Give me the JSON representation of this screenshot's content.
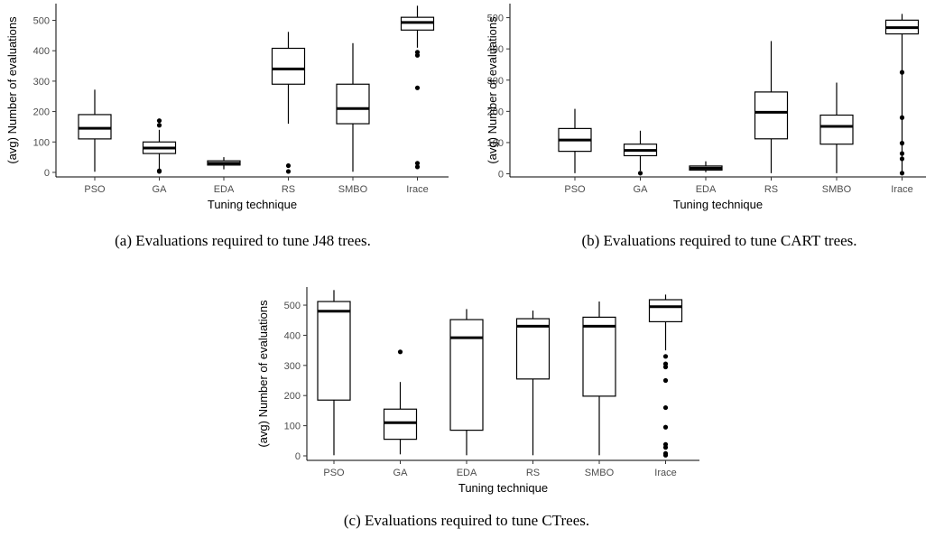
{
  "chart_data": [
    {
      "type": "boxplot",
      "caption": "(a) Evaluations required to tune J48 trees.",
      "xlabel": "Tuning technique",
      "ylabel": "(avg) Number of evaluations",
      "ylim": [
        -15,
        555
      ],
      "yticks": [
        0,
        100,
        200,
        300,
        400,
        500
      ],
      "categories": [
        "PSO",
        "GA",
        "EDA",
        "RS",
        "SMBO",
        "Irace"
      ],
      "boxes": [
        {
          "min": 2,
          "q1": 110,
          "median": 145,
          "q3": 190,
          "max": 272,
          "outliers": []
        },
        {
          "min": 10,
          "q1": 62,
          "median": 80,
          "q3": 100,
          "max": 140,
          "outliers": [
            3,
            5,
            155,
            170
          ]
        },
        {
          "min": 10,
          "q1": 24,
          "median": 30,
          "q3": 38,
          "max": 50,
          "outliers": []
        },
        {
          "min": 160,
          "q1": 290,
          "median": 340,
          "q3": 408,
          "max": 462,
          "outliers": [
            3,
            22
          ]
        },
        {
          "min": 2,
          "q1": 160,
          "median": 210,
          "q3": 290,
          "max": 425,
          "outliers": []
        },
        {
          "min": 410,
          "q1": 468,
          "median": 493,
          "q3": 510,
          "max": 548,
          "outliers": [
            18,
            30,
            278,
            385,
            395
          ]
        }
      ]
    },
    {
      "type": "boxplot",
      "caption": "(b) Evaluations required to tune CART trees.",
      "xlabel": "Tuning technique",
      "ylabel": "(avg) Number of evaluations",
      "ylim": [
        -10,
        545
      ],
      "yticks": [
        0,
        100,
        200,
        300,
        400,
        500
      ],
      "categories": [
        "PSO",
        "GA",
        "EDA",
        "RS",
        "SMBO",
        "Irace"
      ],
      "boxes": [
        {
          "min": 2,
          "q1": 72,
          "median": 108,
          "q3": 145,
          "max": 208,
          "outliers": []
        },
        {
          "min": 10,
          "q1": 58,
          "median": 75,
          "q3": 95,
          "max": 138,
          "outliers": [
            2
          ]
        },
        {
          "min": 5,
          "q1": 12,
          "median": 18,
          "q3": 25,
          "max": 40,
          "outliers": []
        },
        {
          "min": 2,
          "q1": 112,
          "median": 197,
          "q3": 262,
          "max": 425,
          "outliers": []
        },
        {
          "min": 2,
          "q1": 95,
          "median": 152,
          "q3": 188,
          "max": 292,
          "outliers": []
        },
        {
          "min": 2,
          "q1": 448,
          "median": 468,
          "q3": 492,
          "max": 512,
          "outliers": [
            2,
            48,
            65,
            98,
            180,
            325
          ]
        }
      ]
    },
    {
      "type": "boxplot",
      "caption": "(c) Evaluations required to tune CTrees.",
      "xlabel": "Tuning technique",
      "ylabel": "(avg) Number of evaluations",
      "ylim": [
        -15,
        560
      ],
      "yticks": [
        0,
        100,
        200,
        300,
        400,
        500
      ],
      "categories": [
        "PSO",
        "GA",
        "EDA",
        "RS",
        "SMBO",
        "Irace"
      ],
      "boxes": [
        {
          "min": 2,
          "q1": 185,
          "median": 480,
          "q3": 512,
          "max": 550,
          "outliers": []
        },
        {
          "min": 5,
          "q1": 55,
          "median": 110,
          "q3": 155,
          "max": 245,
          "outliers": [
            345
          ]
        },
        {
          "min": 2,
          "q1": 85,
          "median": 392,
          "q3": 452,
          "max": 487,
          "outliers": []
        },
        {
          "min": 2,
          "q1": 255,
          "median": 430,
          "q3": 455,
          "max": 482,
          "outliers": []
        },
        {
          "min": 2,
          "q1": 198,
          "median": 430,
          "q3": 460,
          "max": 512,
          "outliers": []
        },
        {
          "min": 350,
          "q1": 445,
          "median": 495,
          "q3": 518,
          "max": 535,
          "outliers": [
            2,
            8,
            28,
            38,
            95,
            160,
            250,
            295,
            305,
            330
          ]
        }
      ]
    }
  ]
}
